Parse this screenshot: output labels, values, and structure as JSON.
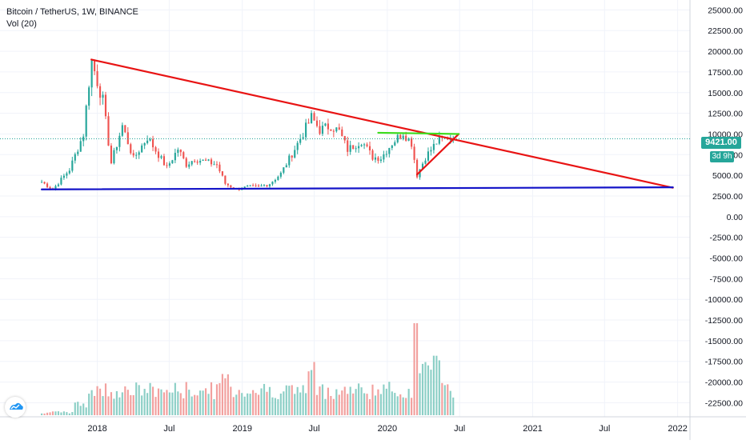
{
  "legend": {
    "symbol": "Bitcoin / TetherUS, 1W, BINANCE",
    "indicator": "Vol (20)"
  },
  "last_price_label": "9421.00",
  "countdown_label": "3d 9h",
  "colors": {
    "up": "#26a69a",
    "down": "#ef5350",
    "vol_up": "#8ccfc6",
    "vol_down": "#f2a09e",
    "trend_red": "#e81414",
    "support_blue": "#1414c8",
    "level_green": "#3ddc1e",
    "price_line": "#26a69a",
    "grid": "#f0f3fa",
    "axis_text": "#131722"
  },
  "chart_data": {
    "type": "candlestick",
    "x_tick_labels": [
      "2018",
      "Jul",
      "2019",
      "Jul",
      "2020",
      "Jul",
      "2021",
      "Jul",
      "2022"
    ],
    "y_tick_labels": [
      "25000.00",
      "22500.00",
      "20000.00",
      "17500.00",
      "15000.00",
      "12500.00",
      "10000.00",
      "7500.00",
      "5000.00",
      "2500.00",
      "0.00",
      "-2500.00",
      "-5000.00",
      "-7500.00",
      "-10000.00",
      "-12500.00",
      "-15000.00",
      "-17500.00",
      "-20000.00",
      "-22500.00"
    ],
    "y_tick_values": [
      25000,
      22500,
      20000,
      17500,
      15000,
      12500,
      10000,
      7500,
      5000,
      2500,
      0,
      -2500,
      -5000,
      -7500,
      -10000,
      -12500,
      -15000,
      -17500,
      -20000,
      -22500
    ],
    "ylim": [
      -24200,
      26200
    ],
    "xlim": [
      "2017-05-01",
      "2022-02-01"
    ],
    "x_ticks": [
      "2018-01-01",
      "2018-07-01",
      "2019-01-01",
      "2019-07-01",
      "2020-01-01",
      "2020-07-01",
      "2021-01-01",
      "2021-07-01",
      "2022-01-01"
    ],
    "last_price": 9421,
    "trendlines": [
      {
        "color": "red",
        "from": [
          "2017-12-17",
          19000
        ],
        "to": [
          "2021-12-20",
          3500
        ]
      },
      {
        "color": "red",
        "from": [
          "2020-03-16",
          5100
        ],
        "to": [
          "2020-06-29",
          10000
        ]
      },
      {
        "color": "blue",
        "from": [
          "2017-08-14",
          3300
        ],
        "to": [
          "2021-12-20",
          3550
        ]
      },
      {
        "color": "green",
        "from": [
          "2019-12-09",
          10150
        ],
        "to": [
          "2020-06-29",
          10000
        ]
      }
    ],
    "anchors": [
      [
        "2017-08-14",
        4200
      ],
      [
        "2017-09-11",
        3300
      ],
      [
        "2017-10-23",
        5700
      ],
      [
        "2017-11-27",
        10000
      ],
      [
        "2017-12-17",
        19000
      ],
      [
        "2018-01-15",
        14000
      ],
      [
        "2018-02-05",
        6500
      ],
      [
        "2018-03-05",
        11000
      ],
      [
        "2018-04-02",
        7000
      ],
      [
        "2018-05-07",
        9600
      ],
      [
        "2018-06-25",
        5900
      ],
      [
        "2018-07-23",
        8200
      ],
      [
        "2018-08-13",
        6300
      ],
      [
        "2018-09-03",
        7000
      ],
      [
        "2018-10-29",
        6300
      ],
      [
        "2018-11-19",
        4000
      ],
      [
        "2018-12-17",
        3300
      ],
      [
        "2019-01-14",
        3600
      ],
      [
        "2019-02-11",
        3600
      ],
      [
        "2019-03-11",
        4000
      ],
      [
        "2019-04-08",
        5200
      ],
      [
        "2019-05-13",
        8200
      ],
      [
        "2019-06-24",
        12000
      ],
      [
        "2019-07-15",
        10500
      ],
      [
        "2019-08-12",
        11000
      ],
      [
        "2019-09-02",
        10300
      ],
      [
        "2019-09-23",
        8100
      ],
      [
        "2019-10-28",
        9200
      ],
      [
        "2019-11-25",
        7200
      ],
      [
        "2019-12-16",
        7100
      ],
      [
        "2020-01-13",
        8900
      ],
      [
        "2020-02-10",
        10200
      ],
      [
        "2020-03-02",
        8900
      ],
      [
        "2020-03-16",
        5000
      ],
      [
        "2020-04-06",
        7200
      ],
      [
        "2020-05-04",
        9000
      ],
      [
        "2020-06-01",
        9600
      ],
      [
        "2020-06-15",
        9421
      ]
    ],
    "volume_note": "weekly volume bars rendered in the lower pane, peak near March 2020"
  }
}
